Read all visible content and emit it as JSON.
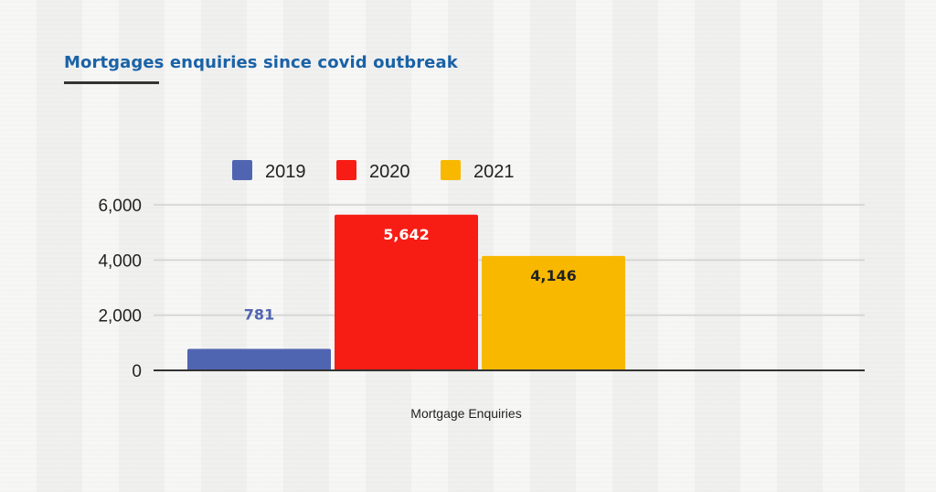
{
  "title": "Mortgages enquiries since covid outbreak",
  "chart_data": {
    "type": "bar",
    "title": "Mortgages enquiries since covid outbreak",
    "categories": [
      "Mortgage Enquiries"
    ],
    "xlabel": "Mortgage Enquiries",
    "ylabel": "",
    "ylim": [
      0,
      6000
    ],
    "yticks": [
      0,
      2000,
      4000,
      6000
    ],
    "ytick_labels": [
      "0",
      "2,000",
      "4,000",
      "6,000"
    ],
    "grid": true,
    "legend_position": "top",
    "series": [
      {
        "name": "2019",
        "values": [
          781
        ],
        "label": "781",
        "color": "#5065b2",
        "label_color": "#5065b2"
      },
      {
        "name": "2020",
        "values": [
          5642
        ],
        "label": "5,642",
        "color": "#f71d14",
        "label_color": "#ffffff"
      },
      {
        "name": "2021",
        "values": [
          4146
        ],
        "label": "4,146",
        "color": "#f8b800",
        "label_color": "#222222"
      }
    ]
  }
}
